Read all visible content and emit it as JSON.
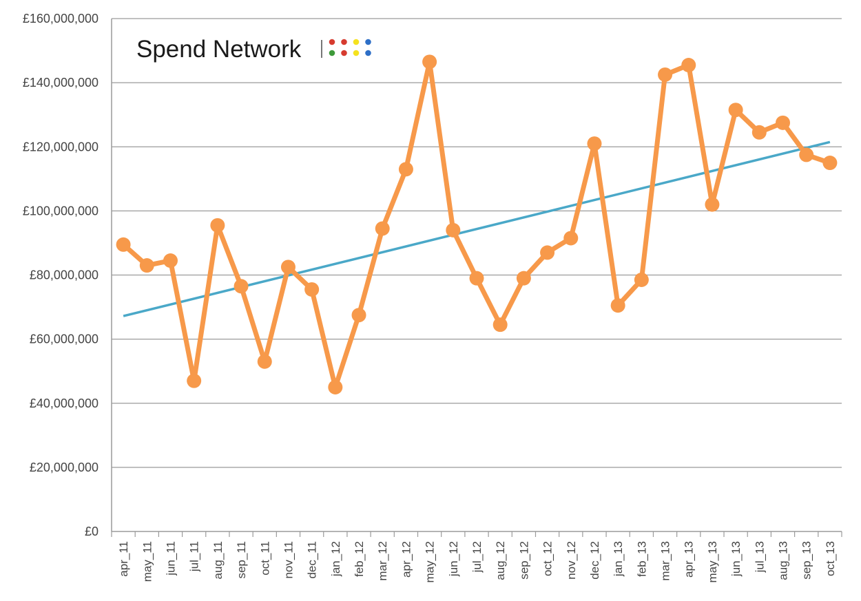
{
  "logo": {
    "text": "Spend Network",
    "dot_colors": [
      "#d63b2f",
      "#d63b2f",
      "#f5e21f",
      "#2e6fc7",
      "#3e9a3a",
      "#d63b2f",
      "#f5e21f",
      "#2e6fc7"
    ]
  },
  "colors": {
    "series": "#f7994a",
    "trend": "#4aa8c8",
    "grid": "#9a9a9a",
    "text": "#444444"
  },
  "chart_data": {
    "type": "line",
    "title": "",
    "xlabel": "",
    "ylabel": "",
    "ylim": [
      0,
      160000000
    ],
    "yticks": [
      0,
      20000000,
      40000000,
      60000000,
      80000000,
      100000000,
      120000000,
      140000000,
      160000000
    ],
    "ytick_labels": [
      "£0",
      "£20,000,000",
      "£40,000,000",
      "£60,000,000",
      "£80,000,000",
      "£100,000,000",
      "£120,000,000",
      "£140,000,000",
      "£160,000,000"
    ],
    "grid": true,
    "legend": "none",
    "categories": [
      "apr_11",
      "may_11",
      "jun_11",
      "jul_11",
      "aug_11",
      "sep_11",
      "oct_11",
      "nov_11",
      "dec_11",
      "jan_12",
      "feb_12",
      "mar_12",
      "apr_12",
      "may_12",
      "jun_12",
      "jul_12",
      "aug_12",
      "sep_12",
      "oct_12",
      "nov_12",
      "dec_12",
      "jan_13",
      "feb_13",
      "mar_13",
      "apr_13",
      "may_13",
      "jun_13",
      "jul_13",
      "aug_13",
      "sep_13",
      "oct_13"
    ],
    "series": [
      {
        "values": [
          89500000,
          83000000,
          84500000,
          47000000,
          95500000,
          76500000,
          53000000,
          82500000,
          75500000,
          45000000,
          67500000,
          94500000,
          113000000,
          146500000,
          94000000,
          79000000,
          64500000,
          79000000,
          87000000,
          91500000,
          121000000,
          70500000,
          78500000,
          142500000,
          145500000,
          102000000,
          131500000,
          124500000,
          127500000,
          117500000,
          115000000
        ]
      }
    ],
    "trendline": {
      "start": 67200000,
      "end": 121500000
    }
  }
}
